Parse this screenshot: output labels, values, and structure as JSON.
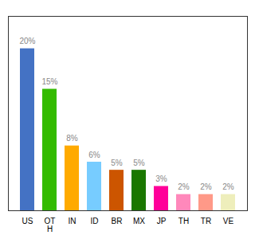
{
  "chart_data": {
    "type": "bar",
    "categories": [
      "US",
      "OT\nH",
      "IN",
      "ID",
      "BR",
      "MX",
      "JP",
      "TH",
      "TR",
      "VE"
    ],
    "values": [
      20,
      15,
      8,
      6,
      5,
      5,
      3,
      2,
      2,
      2
    ],
    "value_labels": [
      "20%",
      "15%",
      "8%",
      "6%",
      "5%",
      "5%",
      "3%",
      "2%",
      "2%",
      "2%"
    ],
    "colors": [
      "#4472c4",
      "#33bb00",
      "#ffaa00",
      "#77ccff",
      "#cc5500",
      "#1a7700",
      "#ff0099",
      "#ff88bb",
      "#ff9988",
      "#eeeebb"
    ],
    "ylim": [
      0,
      24
    ],
    "data_labels": true,
    "tick_labels": "x",
    "grid": false
  }
}
